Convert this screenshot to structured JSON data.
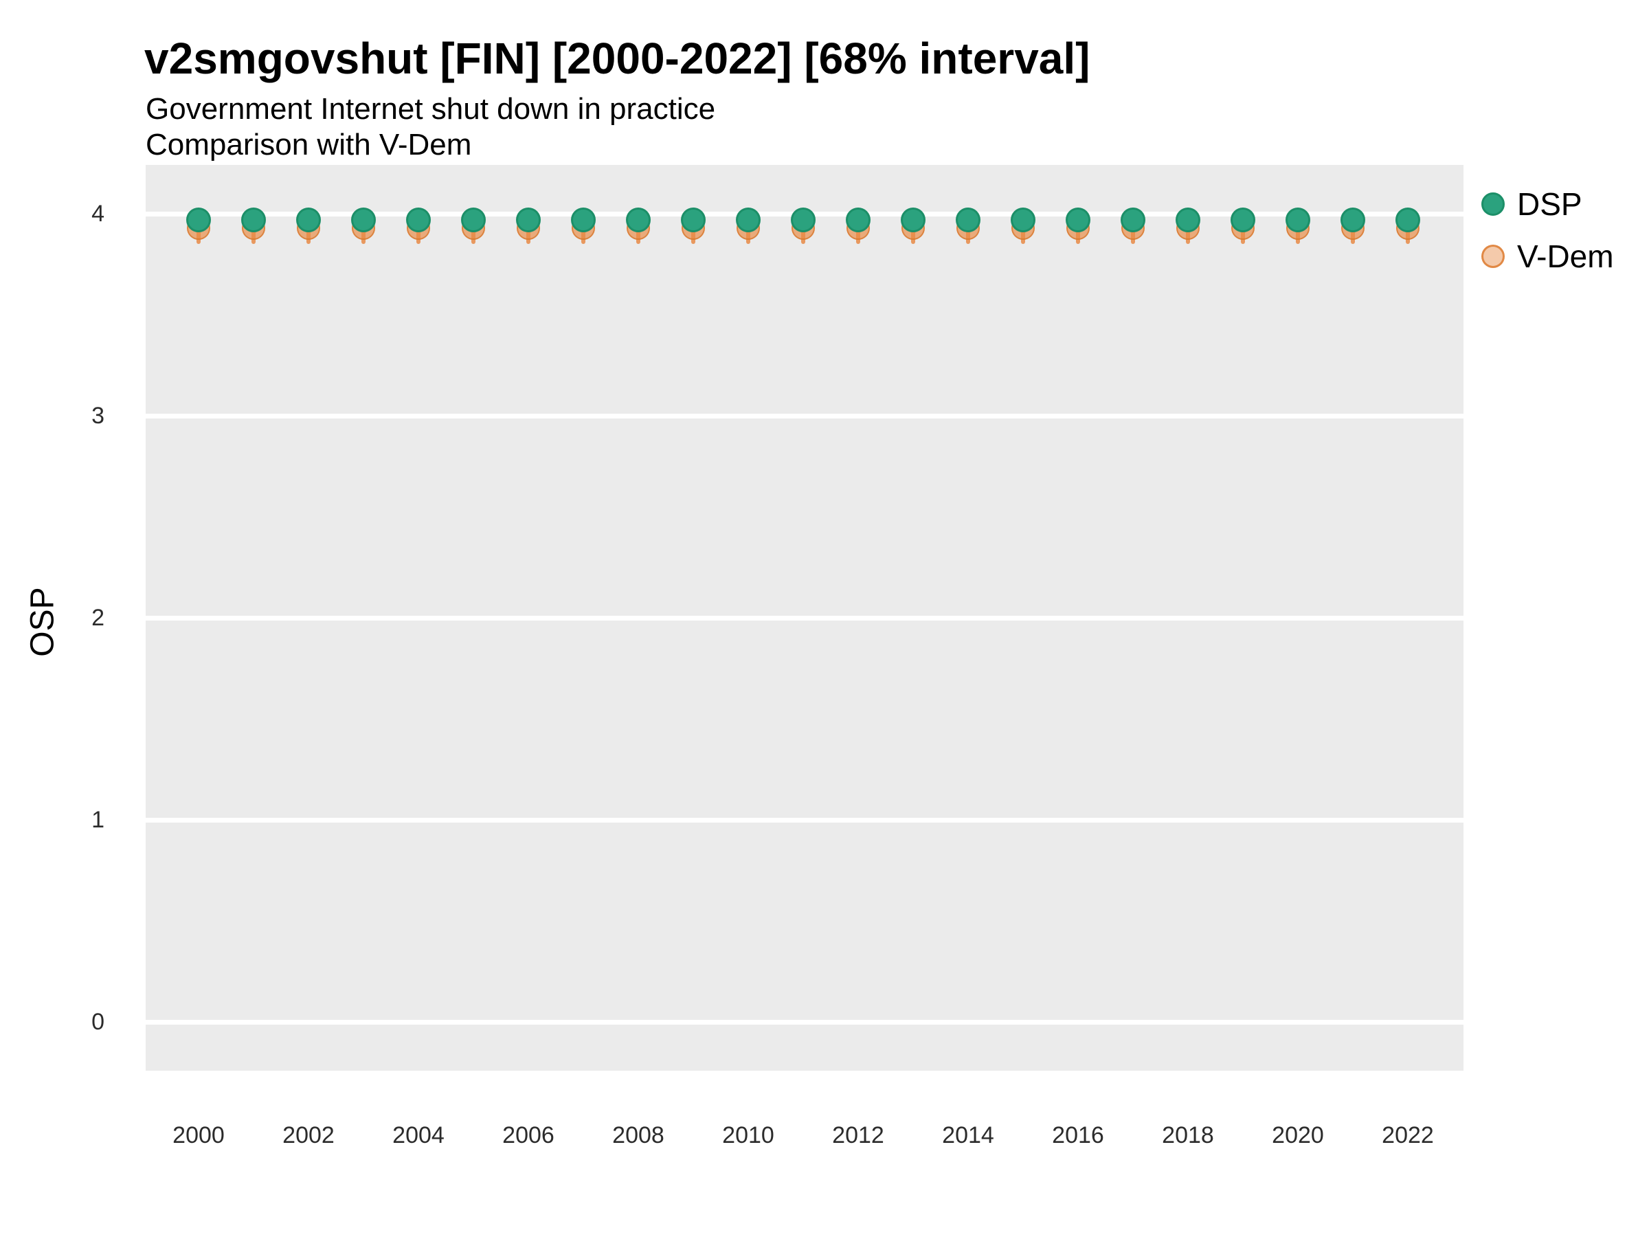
{
  "header": {
    "title": "v2smgovshut [FIN] [2000-2022] [68% interval]",
    "subtitle": "Government Internet shut down in practice",
    "subtitle2": "Comparison with V-Dem"
  },
  "axes": {
    "y_title": "OSP",
    "y_tick_labels": [
      "0",
      "1",
      "2",
      "3",
      "4"
    ],
    "y_tick_values": [
      0,
      1,
      2,
      3,
      4
    ],
    "x_tick_labels": [
      "2000",
      "2002",
      "2004",
      "2006",
      "2008",
      "2010",
      "2012",
      "2014",
      "2016",
      "2018",
      "2020",
      "2022"
    ],
    "x_tick_values": [
      2000,
      2002,
      2004,
      2006,
      2008,
      2010,
      2012,
      2014,
      2016,
      2018,
      2020,
      2022
    ]
  },
  "legend": {
    "items": [
      {
        "label": "DSP",
        "fill": "#2BA27E",
        "border": "#1C8F68"
      },
      {
        "label": "V-Dem",
        "fill": "rgba(231,138,69,0.45)",
        "border": "rgba(222,126,52,0.85)"
      }
    ]
  },
  "colors": {
    "panel_background": "#EBEBEB",
    "gridline": "#FFFFFF",
    "dsp_green": "#2BA27E",
    "dsp_green_border": "#1C8F68",
    "vdem_orange": "#E78A45",
    "background": "#FFFFFF"
  },
  "chart_data": {
    "type": "scatter",
    "title": "v2smgovshut [FIN] [2000-2022] [68% interval]",
    "subtitle": "Government Internet shut down in practice",
    "subtitle2": "Comparison with V-Dem",
    "xlabel": "",
    "ylabel": "OSP",
    "ylim": [
      -0.24,
      4.24
    ],
    "xlim": [
      1999,
      2023
    ],
    "grid": "major-horizontal-white-on-gray",
    "legend_position": "right-top",
    "x": [
      2000,
      2001,
      2002,
      2003,
      2004,
      2005,
      2006,
      2007,
      2008,
      2009,
      2010,
      2011,
      2012,
      2013,
      2014,
      2015,
      2016,
      2017,
      2018,
      2019,
      2020,
      2021,
      2022
    ],
    "series": [
      {
        "name": "DSP",
        "color": "#2BA27E",
        "values": [
          3.97,
          3.97,
          3.97,
          3.97,
          3.97,
          3.97,
          3.97,
          3.97,
          3.97,
          3.97,
          3.97,
          3.97,
          3.97,
          3.97,
          3.97,
          3.97,
          3.97,
          3.97,
          3.97,
          3.97,
          3.97,
          3.97,
          3.97
        ],
        "interval_68_low": [
          3.93,
          3.93,
          3.93,
          3.93,
          3.93,
          3.93,
          3.93,
          3.93,
          3.93,
          3.93,
          3.93,
          3.93,
          3.93,
          3.93,
          3.93,
          3.93,
          3.93,
          3.93,
          3.93,
          3.93,
          3.93,
          3.93,
          3.93
        ],
        "interval_68_high": [
          3.99,
          3.99,
          3.99,
          3.99,
          3.99,
          3.99,
          3.99,
          3.99,
          3.99,
          3.99,
          3.99,
          3.99,
          3.99,
          3.99,
          3.99,
          3.99,
          3.99,
          3.99,
          3.99,
          3.99,
          3.99,
          3.99,
          3.99
        ]
      },
      {
        "name": "V-Dem",
        "color": "#E78A45",
        "values": [
          3.93,
          3.93,
          3.93,
          3.93,
          3.93,
          3.93,
          3.93,
          3.93,
          3.93,
          3.93,
          3.93,
          3.93,
          3.93,
          3.93,
          3.93,
          3.93,
          3.93,
          3.93,
          3.93,
          3.93,
          3.93,
          3.93,
          3.93
        ],
        "interval_68_low": [
          3.85,
          3.85,
          3.85,
          3.85,
          3.85,
          3.85,
          3.85,
          3.85,
          3.85,
          3.85,
          3.85,
          3.85,
          3.85,
          3.85,
          3.85,
          3.85,
          3.85,
          3.85,
          3.85,
          3.85,
          3.85,
          3.85,
          3.85
        ],
        "interval_68_high": [
          3.98,
          3.98,
          3.98,
          3.98,
          3.98,
          3.98,
          3.98,
          3.98,
          3.98,
          3.98,
          3.98,
          3.98,
          3.98,
          3.98,
          3.98,
          3.98,
          3.98,
          3.98,
          3.98,
          3.98,
          3.98,
          3.98,
          3.98
        ]
      }
    ]
  }
}
